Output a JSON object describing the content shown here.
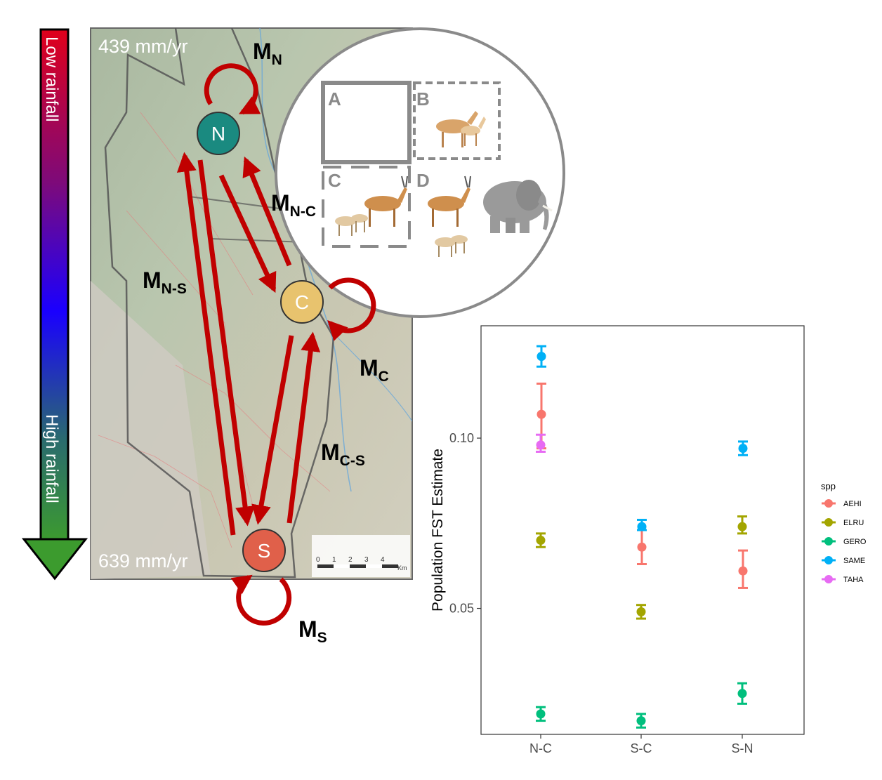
{
  "gradient_bar": {
    "top_label": "Low rainfall",
    "bottom_label": "High rainfall",
    "colors": [
      "#e0001b",
      "#7d0a7a",
      "#1a00ff",
      "#2a6b6e",
      "#3c9b2e"
    ]
  },
  "map": {
    "top_rainfall": "439 mm/yr",
    "bottom_rainfall": "639 mm/yr",
    "scale_ticks": [
      "0",
      "1",
      "2",
      "3",
      "4"
    ],
    "scale_unit": "Km"
  },
  "nodes": {
    "north": {
      "label": "N",
      "color": "#1a8a80"
    },
    "central": {
      "label": "C",
      "color": "#e8c36e"
    },
    "south": {
      "label": "S",
      "color": "#e0604a"
    }
  },
  "migration": {
    "mn": {
      "main": "M",
      "sub": "N"
    },
    "mnc": {
      "main": "M",
      "sub": "N-C"
    },
    "mns": {
      "main": "M",
      "sub": "N-S"
    },
    "mc": {
      "main": "M",
      "sub": "C"
    },
    "mcs": {
      "main": "M",
      "sub": "C-S"
    },
    "ms": {
      "main": "M",
      "sub": "S"
    }
  },
  "arrow_color": "#c00000",
  "inset": {
    "panels": [
      "A",
      "B",
      "C",
      "D"
    ]
  },
  "chart_data": {
    "type": "scatter",
    "ylabel": "Population FST Estimate",
    "xlabel": "",
    "categories": [
      "N-C",
      "S-C",
      "S-N"
    ],
    "y_ticks": [
      "0.05",
      "0.10"
    ],
    "ylim": [
      0.013,
      0.133
    ],
    "grid": false,
    "legend_title": "spp",
    "legend_position": "right",
    "series": [
      {
        "name": "AEHI",
        "color": "#f8766d",
        "points": [
          {
            "x": "N-C",
            "y": 0.107,
            "lo": 0.097,
            "hi": 0.116
          },
          {
            "x": "S-C",
            "y": 0.068,
            "lo": 0.063,
            "hi": 0.073
          },
          {
            "x": "S-N",
            "y": 0.061,
            "lo": 0.056,
            "hi": 0.067
          }
        ]
      },
      {
        "name": "ELRU",
        "color": "#a3a500",
        "points": [
          {
            "x": "N-C",
            "y": 0.07,
            "lo": 0.068,
            "hi": 0.072
          },
          {
            "x": "S-C",
            "y": 0.049,
            "lo": 0.047,
            "hi": 0.051
          },
          {
            "x": "S-N",
            "y": 0.074,
            "lo": 0.072,
            "hi": 0.077
          }
        ]
      },
      {
        "name": "GERO",
        "color": "#00bf7d",
        "points": [
          {
            "x": "N-C",
            "y": 0.019,
            "lo": 0.017,
            "hi": 0.021
          },
          {
            "x": "S-C",
            "y": 0.017,
            "lo": 0.015,
            "hi": 0.019
          },
          {
            "x": "S-N",
            "y": 0.025,
            "lo": 0.022,
            "hi": 0.028
          }
        ]
      },
      {
        "name": "SAME",
        "color": "#00b0f6",
        "points": [
          {
            "x": "N-C",
            "y": 0.124,
            "lo": 0.121,
            "hi": 0.127
          },
          {
            "x": "S-C",
            "y": 0.074,
            "lo": 0.073,
            "hi": 0.076
          },
          {
            "x": "S-N",
            "y": 0.097,
            "lo": 0.095,
            "hi": 0.099
          }
        ]
      },
      {
        "name": "TAHA",
        "color": "#e76bf3",
        "points": [
          {
            "x": "N-C",
            "y": 0.098,
            "lo": 0.096,
            "hi": 0.101
          }
        ]
      }
    ]
  }
}
